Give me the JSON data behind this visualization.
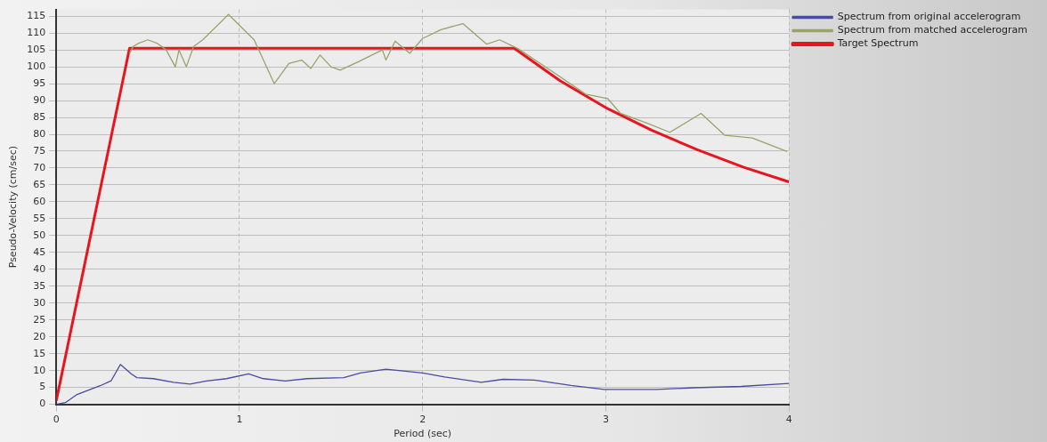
{
  "chart_data": {
    "type": "line",
    "xlabel": "Period (sec)",
    "ylabel": "Pseudo-Velocity (cm/sec)",
    "xlim": [
      0,
      4
    ],
    "xticks": [
      0,
      1,
      2,
      3,
      4
    ],
    "ylim": [
      0,
      117
    ],
    "yticks": [
      0,
      5,
      10,
      15,
      20,
      25,
      30,
      35,
      40,
      45,
      50,
      55,
      60,
      65,
      70,
      75,
      80,
      85,
      90,
      95,
      100,
      105,
      110,
      115
    ],
    "grid": true,
    "legend": "top right",
    "marker": "none",
    "line_style": "solid",
    "series": [
      {
        "name": "Spectrum from original accelerogram",
        "color": "#4b4ba0",
        "x": [
          0,
          0.05,
          0.11,
          0.24,
          0.3,
          0.35,
          0.41,
          0.44,
          0.53,
          0.64,
          0.73,
          0.82,
          0.93,
          1.05,
          1.13,
          1.25,
          1.37,
          1.57,
          1.66,
          1.8,
          2.0,
          2.12,
          2.32,
          2.44,
          2.61,
          2.81,
          2.99,
          3.28,
          3.48,
          3.74,
          4.0
        ],
        "values": [
          0,
          0.5,
          2.8,
          5.5,
          7,
          11.8,
          9,
          7.9,
          7.6,
          6.5,
          6,
          6.9,
          7.6,
          9,
          7.6,
          6.9,
          7.6,
          7.9,
          9.3,
          10.4,
          9.3,
          8.1,
          6.5,
          7.4,
          7.2,
          5.6,
          4.4,
          4.4,
          4.9,
          5.3,
          6.2
        ]
      },
      {
        "name": "Spectrum from matched accelerogram",
        "color": "#9aa36a",
        "x": [
          0.4,
          0.42,
          0.45,
          0.5,
          0.55,
          0.6,
          0.65,
          0.67,
          0.71,
          0.75,
          0.8,
          0.94,
          1.08,
          1.19,
          1.27,
          1.34,
          1.39,
          1.44,
          1.5,
          1.55,
          1.65,
          1.78,
          1.8,
          1.85,
          1.93,
          2.0,
          2.1,
          2.22,
          2.35,
          2.42,
          2.52,
          2.7,
          2.89,
          3.01,
          3.08,
          3.23,
          3.35,
          3.52,
          3.65,
          3.8,
          3.99
        ],
        "values": [
          104,
          106,
          107,
          108,
          107,
          105,
          100,
          105,
          100,
          106,
          108,
          115.5,
          108,
          95,
          101,
          102,
          99.5,
          103.5,
          100,
          99,
          101.5,
          105,
          102,
          107.6,
          104,
          108.4,
          111,
          112.8,
          106.7,
          108,
          105.4,
          98.9,
          91.9,
          90.6,
          86.2,
          83.2,
          80.6,
          86.2,
          79.7,
          78.9,
          74.9
        ]
      },
      {
        "name": "Target Spectrum",
        "color": "#e8141e",
        "x": [
          0,
          0.4,
          2.5,
          2.75,
          3,
          3.25,
          3.5,
          3.75,
          4
        ],
        "values": [
          1,
          105.5,
          105.5,
          95.9,
          87.9,
          81.2,
          75.4,
          70.3,
          65.9
        ]
      }
    ]
  }
}
